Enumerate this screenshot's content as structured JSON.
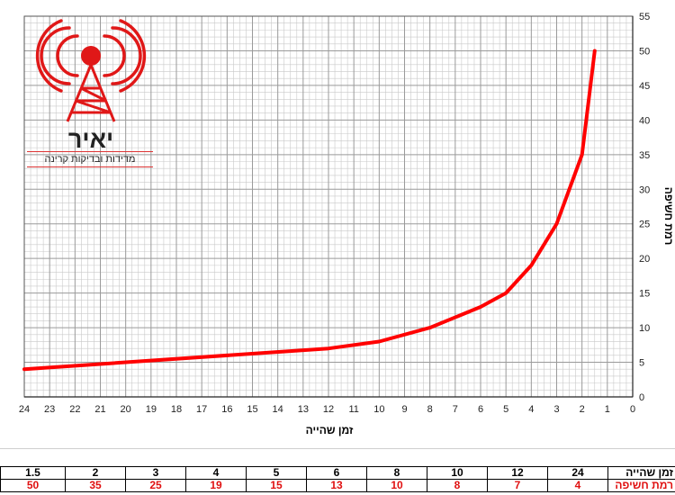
{
  "logo": {
    "title": "יאיר",
    "subtitle": "מדידות ובדיקות קרינה"
  },
  "chart_data": {
    "type": "line",
    "xlabel": "זמן שהייה",
    "ylabel": "רמת חשיפה",
    "x_reversed": true,
    "xlim": [
      0,
      24
    ],
    "ylim": [
      0,
      55
    ],
    "x_ticks": [
      24,
      23,
      22,
      21,
      20,
      19,
      18,
      17,
      16,
      15,
      14,
      13,
      12,
      11,
      10,
      9,
      8,
      7,
      6,
      5,
      4,
      3,
      2,
      1,
      0
    ],
    "y_ticks": [
      0,
      5,
      10,
      15,
      20,
      25,
      30,
      35,
      40,
      45,
      50,
      55
    ],
    "grid": true,
    "series": [
      {
        "color": "#ff0000",
        "x": [
          24,
          12,
          10,
          8,
          6,
          5,
          4,
          3,
          2,
          1.5
        ],
        "y": [
          4,
          7,
          8,
          10,
          13,
          15,
          19,
          25,
          35,
          50
        ]
      }
    ]
  },
  "table": {
    "row_time_header": "זמן שהייה",
    "row_level_header": "רמת חשיפה",
    "time_values": [
      "1.5",
      "2",
      "3",
      "4",
      "5",
      "6",
      "8",
      "10",
      "12",
      "24"
    ],
    "level_values": [
      "50",
      "35",
      "25",
      "19",
      "15",
      "13",
      "10",
      "8",
      "7",
      "4"
    ]
  }
}
